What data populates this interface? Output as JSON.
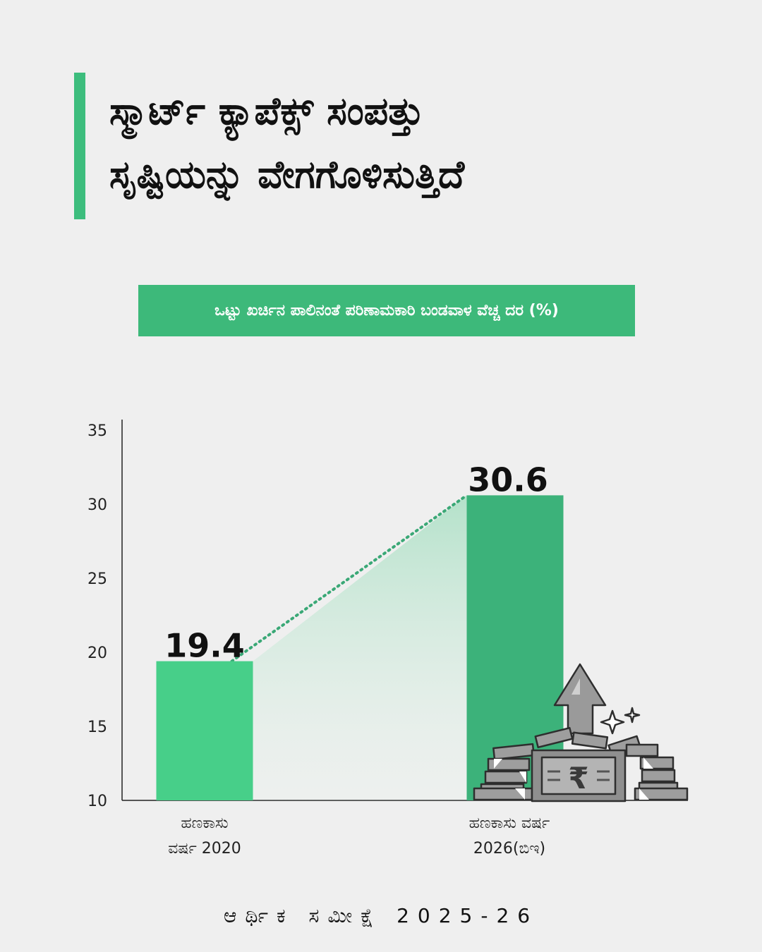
{
  "title": {
    "line1": "ಸ್ಮಾರ್ಟ್ ಕ್ಯಾಪೆಕ್ಸ್  ಸಂಪತ್ತು",
    "line2": "ಸೃಷ್ಟಿಯನ್ನು ವೇಗಗೊಳಿಸುತ್ತಿದೆ"
  },
  "colors": {
    "accent": "#3dbd7d",
    "bar_2020": "#47cf89",
    "bar_2026": "#3cb27a",
    "connector": "#3aa876",
    "background": "#efefef"
  },
  "chart_data": {
    "type": "bar",
    "title": "ಒಟ್ಟು ಖರ್ಚಿನ ಪಾಲಿನಂತೆ ಪರಿಣಾಮಕಾರಿ ಬಂಡವಾಳ ವೆಚ್ಚ ದರ (%)",
    "categories": [
      [
        "ಹಣಕಾಸು",
        "ವರ್ಷ 2020"
      ],
      [
        "ಹಣಕಾಸು ವರ್ಷ",
        "2026(ಬಿಇ)"
      ]
    ],
    "values": [
      19.4,
      30.6
    ],
    "value_labels": [
      "19.4",
      "30.6"
    ],
    "ylim": [
      10,
      35
    ],
    "yticks": [
      10,
      15,
      20,
      25,
      30,
      35
    ],
    "xlabel": "",
    "ylabel": "",
    "grid": false,
    "connector": "dotted",
    "illustration": "money-stack-rupee-arrow-icon"
  },
  "footer": "ಆರ್ಥಿಕ ಸಮೀಕ್ಷೆ 2025-26"
}
